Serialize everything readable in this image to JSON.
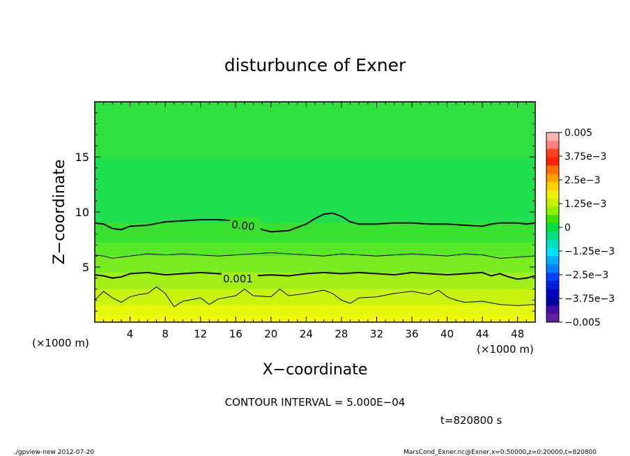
{
  "chart_data": {
    "type": "heatmap",
    "title": "disturbunce of Exner",
    "xlabel": "X−coordinate",
    "ylabel": "Z−coordinate",
    "x_unit_left": "(×1000 m)",
    "x_unit_right": "(×1000 m)",
    "xlim": [
      0,
      50
    ],
    "ylim": [
      0,
      20
    ],
    "x_ticks": [
      "4",
      "8",
      "12",
      "16",
      "20",
      "24",
      "28",
      "32",
      "36",
      "40",
      "44",
      "48"
    ],
    "y_ticks": [
      "5",
      "10",
      "15"
    ],
    "contour_labels": [
      "0.00",
      "0.001"
    ],
    "contour_interval_text": "CONTOUR INTERVAL = 5.000E−04",
    "time_text": "t=820800 s",
    "footer_left": "./gpview-new   2012-07-20",
    "footer_right": "MarsCond_Exner.nc@Exner,x=0:50000,z=0:20000,t=820800",
    "colorbar": {
      "labels": [
        "0.005",
        "3.75e−3",
        "2.5e−3",
        "1.25e−3",
        "0",
        "−1.25e−3",
        "−2.5e−3",
        "−3.75e−3",
        "−0.005"
      ],
      "colors": [
        "#ffb3b3",
        "#ff8080",
        "#ff4020",
        "#ff2000",
        "#ff7000",
        "#ffa000",
        "#ffd000",
        "#f0f000",
        "#c8f000",
        "#90f000",
        "#40e000",
        "#00e040",
        "#00e080",
        "#00e0c0",
        "#00e0ff",
        "#00b0ff",
        "#0080ff",
        "#0040ff",
        "#0020e0",
        "#0000c0",
        "#0000a0",
        "#4010a0",
        "#6020a0"
      ]
    },
    "bands": [
      {
        "z_top": 20.0,
        "color": "#30e040"
      },
      {
        "z_top": 15.0,
        "color": "#20e050"
      },
      {
        "z_top": 9.0,
        "color": "#38e030"
      },
      {
        "z_top": 7.2,
        "color": "#58e828"
      },
      {
        "z_top": 6.0,
        "color": "#78ec20"
      },
      {
        "z_top": 4.5,
        "color": "#a0f018"
      },
      {
        "z_top": 3.0,
        "color": "#c8f410"
      },
      {
        "z_top": 1.6,
        "color": "#e4f80c"
      },
      {
        "z_top": 0.6,
        "color": "#f4f808"
      }
    ],
    "contours": [
      {
        "level": 0.0,
        "bold": true,
        "x": [
          0,
          1,
          2,
          3,
          4,
          6,
          8,
          10,
          12,
          14,
          16,
          18,
          19,
          20,
          22,
          23,
          24,
          25,
          26,
          27,
          28,
          29,
          30,
          32,
          34,
          36,
          38,
          40,
          42,
          44,
          45,
          46,
          48,
          49,
          50
        ],
        "z": [
          9.0,
          8.9,
          8.5,
          8.4,
          8.7,
          8.8,
          9.1,
          9.2,
          9.3,
          9.3,
          9.2,
          8.9,
          8.4,
          8.2,
          8.3,
          8.6,
          8.9,
          9.4,
          9.8,
          9.9,
          9.6,
          9.1,
          8.9,
          8.9,
          9.0,
          9.0,
          8.9,
          8.9,
          8.8,
          8.7,
          8.9,
          9.0,
          9.0,
          8.9,
          9.0
        ]
      },
      {
        "level": 0.0005,
        "bold": false,
        "x": [
          0,
          1,
          2,
          3,
          4,
          6,
          8,
          10,
          12,
          14,
          16,
          18,
          20,
          22,
          24,
          26,
          28,
          30,
          32,
          34,
          36,
          38,
          40,
          42,
          44,
          46,
          48,
          50
        ],
        "z": [
          6.1,
          6.0,
          5.8,
          5.9,
          6.0,
          6.2,
          6.1,
          6.2,
          6.1,
          6.0,
          6.1,
          6.2,
          6.3,
          6.2,
          6.1,
          6.0,
          6.2,
          6.1,
          6.0,
          6.1,
          6.2,
          6.1,
          6.0,
          6.2,
          6.1,
          5.8,
          5.9,
          6.0
        ]
      },
      {
        "level": 0.001,
        "bold": true,
        "x": [
          0,
          1,
          2,
          3,
          4,
          6,
          8,
          10,
          12,
          14,
          16,
          18,
          20,
          22,
          24,
          26,
          28,
          30,
          32,
          34,
          36,
          38,
          40,
          42,
          44,
          45,
          46,
          47,
          48,
          49,
          50
        ],
        "z": [
          4.3,
          4.2,
          4.0,
          4.1,
          4.4,
          4.5,
          4.3,
          4.4,
          4.5,
          4.4,
          4.3,
          4.2,
          4.3,
          4.2,
          4.4,
          4.5,
          4.4,
          4.5,
          4.4,
          4.3,
          4.5,
          4.4,
          4.3,
          4.4,
          4.5,
          4.2,
          4.4,
          4.1,
          3.9,
          4.0,
          4.2
        ]
      },
      {
        "level": 0.0015,
        "bold": false,
        "x": [
          0,
          1,
          2,
          3,
          4,
          5,
          6,
          7,
          8,
          9,
          10,
          12,
          13,
          14,
          16,
          17,
          18,
          20,
          21,
          22,
          24,
          26,
          27,
          28,
          29,
          30,
          32,
          34,
          36,
          38,
          39,
          40,
          41,
          42,
          44,
          46,
          48,
          50
        ],
        "z": [
          2.0,
          2.8,
          2.2,
          1.8,
          2.3,
          2.5,
          2.6,
          3.2,
          2.6,
          1.4,
          1.9,
          2.2,
          1.6,
          2.1,
          2.4,
          3.0,
          2.4,
          2.3,
          3.0,
          2.4,
          2.6,
          2.9,
          2.6,
          2.0,
          1.7,
          2.2,
          2.3,
          2.6,
          2.8,
          2.5,
          2.9,
          2.3,
          2.0,
          1.8,
          1.9,
          1.6,
          1.5,
          1.6
        ]
      }
    ]
  }
}
